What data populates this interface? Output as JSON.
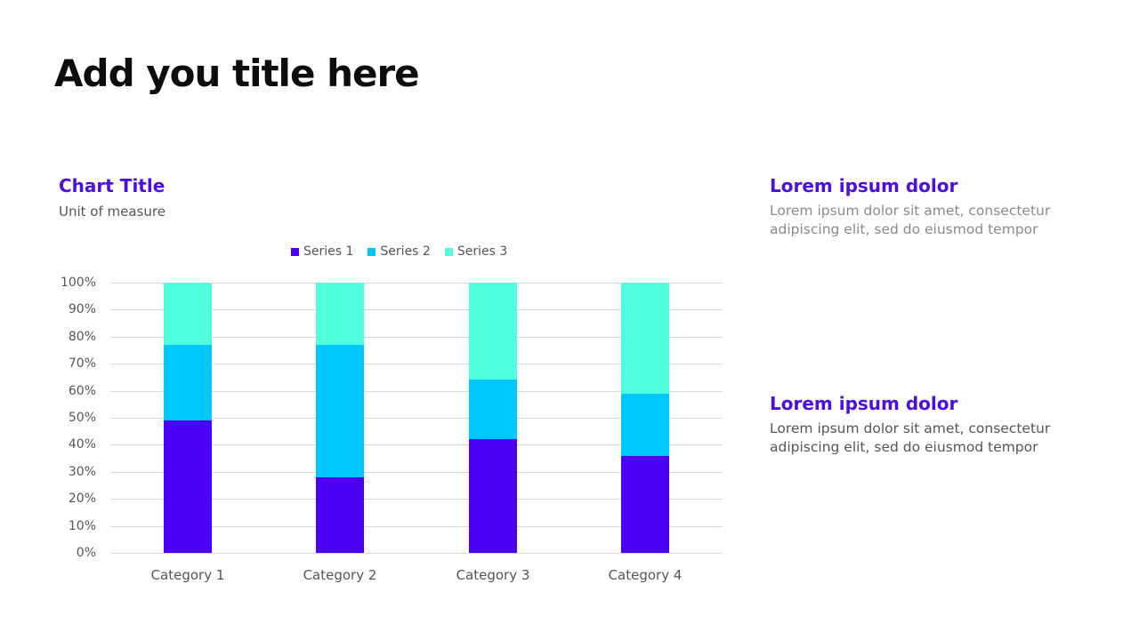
{
  "title": "Add you title here",
  "chart": {
    "title": "Chart Title",
    "subtitle": "Unit of measure"
  },
  "colors": {
    "series1": "#4b00f5",
    "series2": "#00c8ff",
    "series3": "#52ffdc",
    "accent": "#4b0fe0",
    "grid": "#d9d9d9"
  },
  "side": [
    {
      "heading": "Lorem ipsum dolor",
      "text": "Lorem ipsum dolor sit amet, consectetur adipiscing elit, sed do eiusmod tempor",
      "text_color": "#8a8a8a"
    },
    {
      "heading": "Lorem ipsum dolor",
      "text": "Lorem ipsum dolor sit amet, consectetur adipiscing elit, sed do eiusmod tempor",
      "text_color": "#555555"
    }
  ],
  "chart_data": {
    "type": "bar",
    "stacked": "percent",
    "values_note": "No data labels are shown; values are estimated from bar segment heights against the 0-100% axis (approx. ±1-2 pts) and represent each series' share of its category.",
    "title": "Chart Title",
    "subtitle": "Unit of measure",
    "xlabel": "",
    "ylabel": "",
    "ylim": [
      0,
      100
    ],
    "yticks": [
      "0%",
      "10%",
      "20%",
      "30%",
      "40%",
      "50%",
      "60%",
      "70%",
      "80%",
      "90%",
      "100%"
    ],
    "categories": [
      "Category 1",
      "Category 2",
      "Category 3",
      "Category 4"
    ],
    "series": [
      {
        "name": "Series 1",
        "color": "#4b00f5",
        "values": [
          49,
          28,
          42,
          36
        ]
      },
      {
        "name": "Series 2",
        "color": "#00c8ff",
        "values": [
          28,
          49,
          22,
          23
        ]
      },
      {
        "name": "Series 3",
        "color": "#52ffdc",
        "values": [
          23,
          23,
          36,
          41
        ]
      }
    ],
    "legend_position": "top",
    "grid": true
  }
}
